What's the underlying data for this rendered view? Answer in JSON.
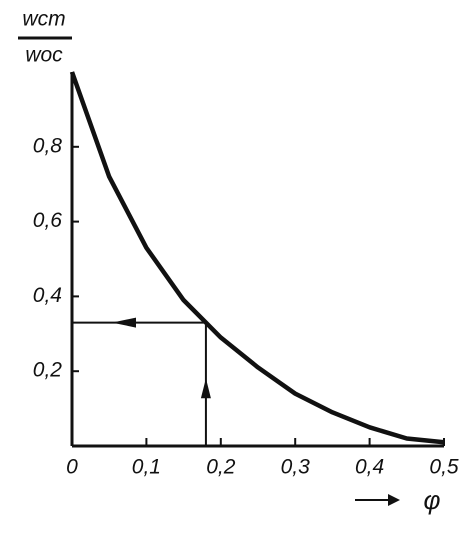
{
  "chart_data": {
    "type": "line",
    "y_label": {
      "numerator": "wст",
      "denominator": "wос"
    },
    "x_label": "φ",
    "x": [
      0,
      0.05,
      0.1,
      0.15,
      0.2,
      0.25,
      0.3,
      0.35,
      0.4,
      0.45,
      0.5
    ],
    "values": [
      1.0,
      0.72,
      0.53,
      0.39,
      0.29,
      0.21,
      0.14,
      0.09,
      0.05,
      0.02,
      0.01
    ],
    "color": "#111111",
    "xlim": [
      0,
      0.5
    ],
    "ylim": [
      0,
      1
    ],
    "xticks": [
      0,
      {
        "value": 0.1,
        "label": "0,1"
      },
      {
        "value": 0.2,
        "label": "0,2"
      },
      {
        "value": 0.3,
        "label": "0,3"
      },
      {
        "value": 0.4,
        "label": "0,4"
      },
      {
        "value": 0.5,
        "label": "0,5"
      }
    ],
    "yticks": [
      {
        "value": 0.2,
        "label": "0,2"
      },
      {
        "value": 0.4,
        "label": "0,4"
      },
      {
        "value": 0.6,
        "label": "0,6"
      },
      {
        "value": 0.8,
        "label": "0,8"
      }
    ],
    "guide": {
      "x": 0.18,
      "y": 0.33
    }
  }
}
